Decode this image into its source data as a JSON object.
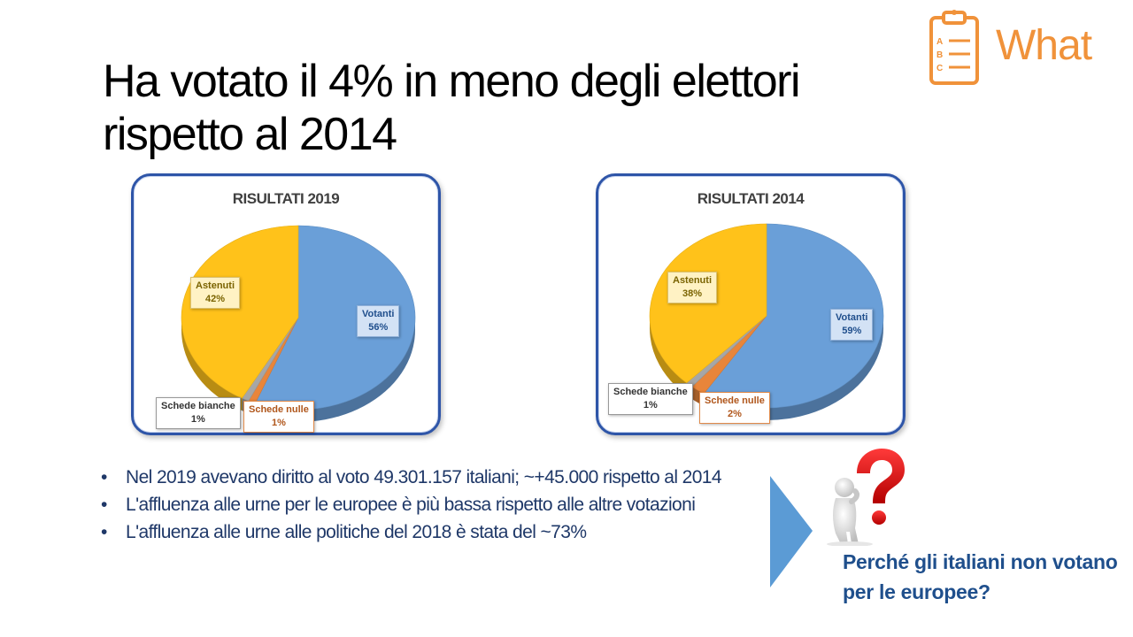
{
  "title": "Ha votato il 4% in meno degli elettori rispetto al 2014",
  "badge": {
    "label": "What",
    "icon": "clipboard-abc-icon",
    "color": "#f0923a"
  },
  "chart_data": [
    {
      "type": "pie",
      "title": "RISULTATI 2019",
      "slices": [
        {
          "name": "Votanti",
          "value": 56,
          "label": "56%",
          "color": "#6a9fd8"
        },
        {
          "name": "Schede nulle",
          "value": 1,
          "label": "1%",
          "color": "#e8853a"
        },
        {
          "name": "Schede bianche",
          "value": 1,
          "label": "1%",
          "color": "#a6a6a6"
        },
        {
          "name": "Astenuti",
          "value": 42,
          "label": "42%",
          "color": "#ffc21a"
        }
      ]
    },
    {
      "type": "pie",
      "title": "RISULTATI 2014",
      "slices": [
        {
          "name": "Votanti",
          "value": 59,
          "label": "59%",
          "color": "#6a9fd8"
        },
        {
          "name": "Schede nulle",
          "value": 2,
          "label": "2%",
          "color": "#e8853a"
        },
        {
          "name": "Schede bianche",
          "value": 1,
          "label": "1%",
          "color": "#a6a6a6"
        },
        {
          "name": "Astenuti",
          "value": 38,
          "label": "38%",
          "color": "#ffc21a"
        }
      ]
    }
  ],
  "bullets": [
    "Nel 2019 avevano diritto al voto 49.301.157 italiani; ~+45.000 rispetto al 2014",
    "L'affluenza alle urne per le europee è più bassa rispetto alle altre votazioni",
    "L'affluenza alle urne alle politiche del 2018 è stata del ~73%"
  ],
  "question": "Perché gli italiani non votano per le europee?",
  "icons": {
    "arrow": "arrow-right-icon",
    "figure": "question-person-icon"
  }
}
